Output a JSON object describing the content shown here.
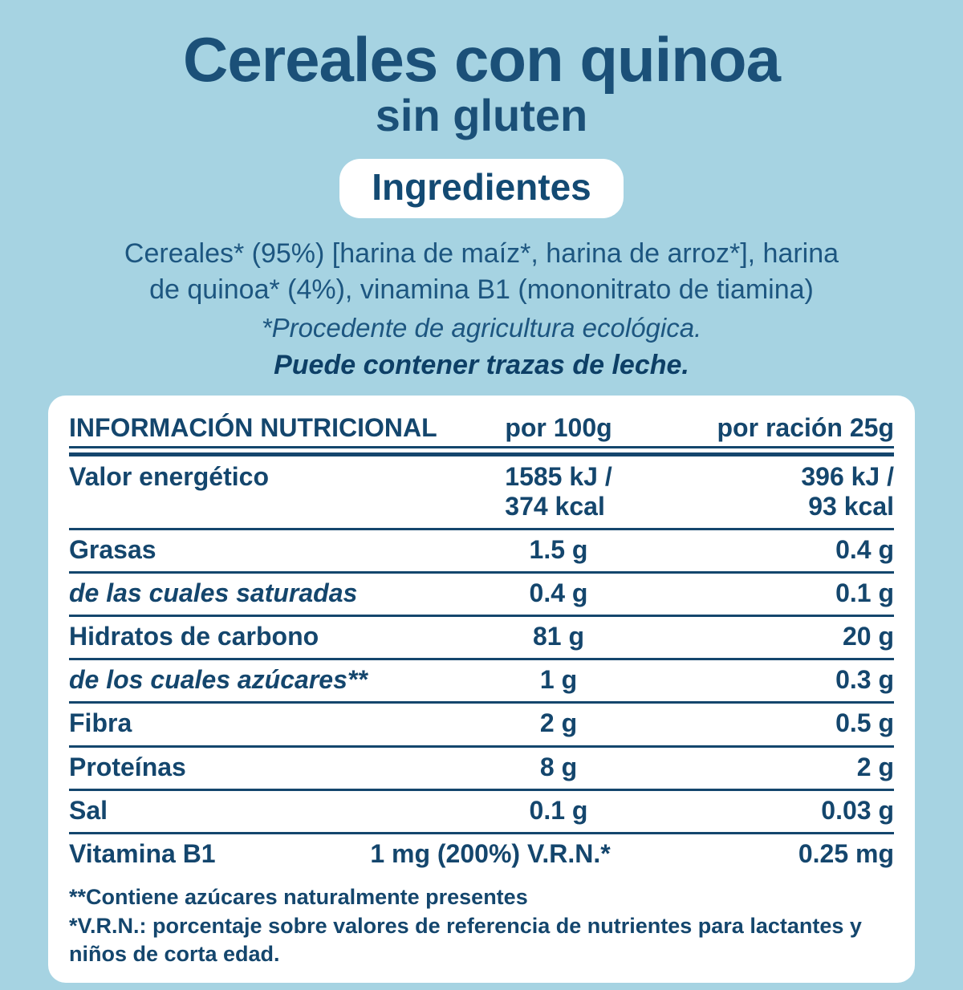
{
  "page": {
    "background_color": "#a6d3e2",
    "accent_navy": "#1b5078",
    "table_navy": "#14466d",
    "card_color": "#ffffff"
  },
  "header": {
    "title": "Cereales con quinoa",
    "subtitle": "sin gluten",
    "ingredients_badge": "Ingredientes",
    "ingredients_lines": [
      "Cereales* (95%) [harina de maíz*, harina de arroz*], harina",
      "de quinoa* (4%), vinamina B1 (mononitrato de tiamina)"
    ],
    "organic_note": "*Procedente de agricultura ecológica.",
    "allergen_note": "Puede contener trazas de leche."
  },
  "nutrition_table": {
    "columns": [
      "INFORMACIÓN NUTRICIONAL",
      "por 100g",
      "por ración 25g"
    ],
    "rows": [
      {
        "label": "Valor energético",
        "per_100g": [
          "1585 kJ /",
          "374 kcal"
        ],
        "per_serving": [
          "396 kJ /",
          "93 kcal"
        ]
      },
      {
        "label": "Grasas",
        "per_100g": "1.5 g",
        "per_serving": "0.4 g"
      },
      {
        "label": "de las cuales saturadas",
        "per_100g": "0.4 g",
        "per_serving": "0.1 g"
      },
      {
        "label": "Hidratos de carbono",
        "per_100g": "81 g",
        "per_serving": "20 g"
      },
      {
        "label": "de los cuales azúcares**",
        "per_100g": "1 g",
        "per_serving": "0.3 g"
      },
      {
        "label": "Fibra",
        "per_100g": "2 g",
        "per_serving": "0.5 g"
      },
      {
        "label": "Proteínas",
        "per_100g": "8 g",
        "per_serving": "2 g"
      },
      {
        "label": "Sal",
        "per_100g": "0.1 g",
        "per_serving": "0.03 g"
      },
      {
        "label": "Vitamina B1",
        "per_100g": "1 mg (200%) V.R.N.*",
        "per_serving": "0.25 mg"
      }
    ],
    "footnotes": [
      "**Contiene azúcares naturalmente presentes",
      "*V.R.N.: porcentaje sobre valores de referencia de nutrientes para lactantes y niños de corta edad."
    ]
  }
}
